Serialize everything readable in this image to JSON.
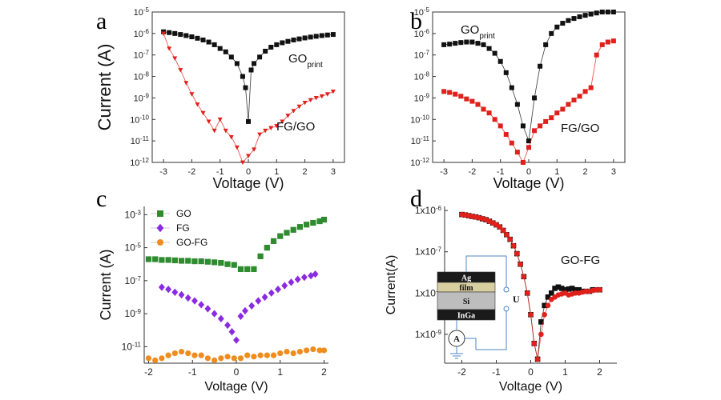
{
  "chart_data": [
    {
      "panel": "a",
      "type": "line",
      "xlabel": "Voltage (V)",
      "ylabel": "Current (A)",
      "xlim": [
        -3.4,
        3.4
      ],
      "ylim_log": [
        -12,
        -5
      ],
      "x_ticks": [
        "-3",
        "-2",
        "-1",
        "0",
        "1",
        "2",
        "3"
      ],
      "y_ticks": [
        "10-12",
        "10-11",
        "10-10",
        "10-9",
        "10-8",
        "10-7",
        "10-6",
        "10-5"
      ],
      "annotations": [
        {
          "text": "GO",
          "sub": "print"
        },
        {
          "text": "FG/GO"
        }
      ],
      "series": [
        {
          "color": "#111111",
          "marker": "square",
          "x": [
            -3,
            -2.8,
            -2.6,
            -2.4,
            -2.2,
            -2,
            -1.8,
            -1.6,
            -1.4,
            -1.2,
            -1,
            -0.8,
            -0.6,
            -0.4,
            -0.2,
            -0.1,
            0,
            0.1,
            0.2,
            0.4,
            0.6,
            0.8,
            1,
            1.2,
            1.4,
            1.6,
            1.8,
            2,
            2.2,
            2.4,
            2.6,
            2.8,
            3
          ],
          "y": [
            1.2e-06,
            1.1e-06,
            1e-06,
            9e-07,
            8e-07,
            7e-07,
            6e-07,
            5e-07,
            4e-07,
            3e-07,
            2e-07,
            1.4e-07,
            8e-08,
            4e-08,
            1e-08,
            3e-09,
            8e-11,
            2e-08,
            4e-08,
            8e-08,
            1.5e-07,
            2.3e-07,
            3e-07,
            3.7e-07,
            4.3e-07,
            5e-07,
            5.6e-07,
            6.2e-07,
            6.8e-07,
            7.4e-07,
            8e-07,
            8.5e-07,
            9e-07
          ]
        },
        {
          "color": "#e0201b",
          "marker": "triangle-down",
          "x": [
            -3,
            -2.8,
            -2.6,
            -2.4,
            -2.2,
            -2,
            -1.8,
            -1.6,
            -1.4,
            -1.2,
            -1,
            -0.8,
            -0.6,
            -0.4,
            -0.2,
            0,
            0.2,
            0.4,
            0.6,
            0.8,
            1,
            1.2,
            1.4,
            1.6,
            1.8,
            2,
            2.2,
            2.4,
            2.6,
            2.8,
            3
          ],
          "y": [
            1e-06,
            2e-07,
            7e-08,
            2e-08,
            5e-09,
            1.5e-09,
            5e-10,
            2e-10,
            8e-11,
            3e-11,
            1e-10,
            3e-11,
            1.5e-11,
            5e-12,
            1e-12,
            2e-12,
            4e-12,
            2e-11,
            3e-11,
            4e-11,
            5e-11,
            8e-11,
            1.5e-10,
            2.5e-10,
            4e-10,
            6e-10,
            8e-10,
            1e-09,
            1.2e-09,
            1.5e-09,
            2e-09
          ]
        }
      ]
    },
    {
      "panel": "b",
      "type": "line",
      "xlabel": "Voltage (V)",
      "ylabel": "",
      "xlim": [
        -3.4,
        3.4
      ],
      "ylim_log": [
        -12,
        -5
      ],
      "x_ticks": [
        "-3",
        "-2",
        "-1",
        "0",
        "1",
        "2",
        "3"
      ],
      "y_ticks": [
        "10-12",
        "10-11",
        "10-10",
        "10-9",
        "10-8",
        "10-7",
        "10-6",
        "10-5"
      ],
      "annotations": [
        {
          "text": "GO",
          "sub": "print"
        },
        {
          "text": "FG/GO"
        }
      ],
      "series": [
        {
          "color": "#111111",
          "marker": "square",
          "x": [
            -3,
            -2.8,
            -2.6,
            -2.4,
            -2.2,
            -2,
            -1.8,
            -1.6,
            -1.4,
            -1.2,
            -1,
            -0.8,
            -0.6,
            -0.4,
            -0.2,
            0,
            0.2,
            0.4,
            0.6,
            0.8,
            1,
            1.2,
            1.4,
            1.6,
            1.8,
            2,
            2.2,
            2.4,
            2.6,
            2.8,
            3
          ],
          "y": [
            3e-07,
            3.2e-07,
            3.5e-07,
            3.8e-07,
            4e-07,
            4e-07,
            3.5e-07,
            3e-07,
            2e-07,
            1.2e-07,
            5e-08,
            1.5e-08,
            3e-09,
            5e-10,
            5e-11,
            1e-11,
            1e-09,
            3e-08,
            3e-07,
            1e-06,
            2e-06,
            3e-06,
            4e-06,
            5e-06,
            6e-06,
            7e-06,
            8e-06,
            9e-06,
            1e-05,
            1e-05,
            1e-05
          ]
        },
        {
          "color": "#e0201b",
          "marker": "square",
          "x": [
            -3,
            -2.8,
            -2.6,
            -2.4,
            -2.2,
            -2,
            -1.8,
            -1.6,
            -1.4,
            -1.2,
            -1,
            -0.8,
            -0.6,
            -0.4,
            -0.2,
            0,
            0.2,
            0.4,
            0.6,
            0.8,
            1,
            1.2,
            1.4,
            1.6,
            1.8,
            2,
            2.2,
            2.4,
            2.6,
            2.8,
            3
          ],
          "y": [
            2e-09,
            1.8e-09,
            1.5e-09,
            1.2e-09,
            9e-10,
            7e-10,
            5e-10,
            3e-10,
            2e-10,
            1e-10,
            5e-11,
            2e-11,
            8e-12,
            3e-12,
            1e-12,
            5e-12,
            3e-11,
            5e-11,
            8e-11,
            1.2e-10,
            2e-10,
            3e-10,
            5e-10,
            8e-10,
            1.2e-09,
            2e-09,
            3e-09,
            1e-07,
            3e-07,
            4e-07,
            4.5e-07
          ]
        }
      ]
    },
    {
      "panel": "c",
      "type": "scatter",
      "xlabel": "Voltage (V)",
      "ylabel": "Current (A)",
      "xlim": [
        -2.1,
        2.1
      ],
      "ylim_log": [
        -12,
        -2.5
      ],
      "x_ticks": [
        "-2",
        "-1",
        "0",
        "1",
        "2"
      ],
      "y_ticks": [
        "10-11",
        "10-9",
        "10-7",
        "10-5",
        "10-3"
      ],
      "legend_position": "top-left",
      "series": [
        {
          "name": "GO",
          "color": "#2e8b2e",
          "marker": "square",
          "x": [
            -2,
            -1.85,
            -1.7,
            -1.55,
            -1.4,
            -1.25,
            -1.1,
            -0.95,
            -0.8,
            -0.65,
            -0.5,
            -0.35,
            -0.2,
            -0.05,
            0.1,
            0.25,
            0.4,
            0.55,
            0.7,
            0.85,
            1,
            1.15,
            1.3,
            1.45,
            1.6,
            1.75,
            1.9,
            2
          ],
          "y": [
            2e-06,
            2e-06,
            1.8e-06,
            1.8e-06,
            1.7e-06,
            1.6e-06,
            1.6e-06,
            1.5e-06,
            1.5e-06,
            1.4e-06,
            1.3e-06,
            1.2e-06,
            1e-06,
            9e-07,
            5e-07,
            5e-07,
            5e-07,
            3e-06,
            1e-05,
            2.5e-05,
            5e-05,
            8e-05,
            0.00012,
            0.00018,
            0.00025,
            0.00032,
            0.0004,
            0.0005
          ]
        },
        {
          "name": "FG",
          "color": "#8a2be2",
          "marker": "diamond",
          "x": [
            -1.7,
            -1.55,
            -1.4,
            -1.25,
            -1.1,
            -0.95,
            -0.8,
            -0.65,
            -0.5,
            -0.35,
            -0.2,
            -0.1,
            0,
            0.1,
            0.2,
            0.35,
            0.5,
            0.65,
            0.8,
            0.95,
            1.1,
            1.25,
            1.4,
            1.55,
            1.7,
            1.8
          ],
          "y": [
            4e-08,
            3e-08,
            2e-08,
            1.4e-08,
            9e-09,
            6e-09,
            3.5e-09,
            2e-09,
            1e-09,
            5e-10,
            2e-10,
            8e-11,
            2.5e-11,
            7e-10,
            1.5e-09,
            3e-09,
            6e-09,
            1e-08,
            1.8e-08,
            3e-08,
            5e-08,
            8e-08,
            1.2e-07,
            1.6e-07,
            2e-07,
            2.5e-07
          ]
        },
        {
          "name": "GO-FG",
          "color": "#f08c1e",
          "marker": "circle",
          "x": [
            -2,
            -1.85,
            -1.7,
            -1.55,
            -1.4,
            -1.25,
            -1.1,
            -0.95,
            -0.8,
            -0.65,
            -0.5,
            -0.35,
            -0.2,
            -0.05,
            0.1,
            0.25,
            0.4,
            0.55,
            0.7,
            0.85,
            1,
            1.15,
            1.3,
            1.45,
            1.6,
            1.75,
            1.9,
            2
          ],
          "y": [
            2e-12,
            1.5e-12,
            2e-12,
            3e-12,
            4e-12,
            5e-12,
            4e-12,
            3e-12,
            3e-12,
            2e-12,
            1.5e-12,
            2e-12,
            2.5e-12,
            2e-12,
            2e-12,
            3e-12,
            2.5e-12,
            3e-12,
            3e-12,
            3e-12,
            4e-12,
            5e-12,
            4e-12,
            5e-12,
            6e-12,
            7e-12,
            6e-12,
            6e-12
          ]
        }
      ]
    },
    {
      "panel": "d",
      "type": "line",
      "xlabel": "Voltage (V)",
      "ylabel": "Current(A)",
      "xlim": [
        -2.5,
        2.5
      ],
      "ylim_log": [
        -9.7,
        -5.9
      ],
      "x_ticks": [
        "-2",
        "-1",
        "0",
        "1",
        "2"
      ],
      "y_ticks": [
        "1x10-9",
        "1x10-8",
        "1x10-7",
        "1x10-6"
      ],
      "annotations": [
        {
          "text": "GO-FG"
        }
      ],
      "inset": {
        "layers": [
          "Ag",
          "film",
          "Si",
          "InGa"
        ],
        "meter": "A",
        "source": "U"
      },
      "series": [
        {
          "color": "#111111",
          "marker": "square",
          "x": [
            -2,
            -1.9,
            -1.8,
            -1.7,
            -1.6,
            -1.5,
            -1.4,
            -1.3,
            -1.2,
            -1.1,
            -1,
            -0.9,
            -0.8,
            -0.7,
            -0.6,
            -0.5,
            -0.4,
            -0.3,
            -0.2,
            -0.1,
            0,
            0.1,
            0.2,
            0.3,
            0.4,
            0.5,
            0.6,
            0.7,
            0.8,
            0.9,
            1,
            1.1,
            1.2,
            1.3,
            1.4,
            1.5,
            1.6,
            1.7,
            1.8,
            1.9,
            2
          ],
          "y": [
            8e-07,
            7.8e-07,
            7.5e-07,
            7.2e-07,
            7e-07,
            6.7e-07,
            6.3e-07,
            6e-07,
            5.5e-07,
            5e-07,
            4.5e-07,
            4e-07,
            3.3e-07,
            2.6e-07,
            2e-07,
            1.4e-07,
            9e-08,
            5e-08,
            2.5e-08,
            1e-08,
            3e-09,
            6e-10,
            2.5e-10,
            2e-09,
            5e-09,
            8e-09,
            1e-08,
            1.3e-08,
            1.4e-08,
            1.3e-08,
            1.2e-08,
            1.25e-08,
            1.3e-08,
            1.2e-08,
            1.2e-08,
            1.1e-08,
            1.1e-08,
            1.1e-08,
            1.2e-08,
            1.2e-08,
            1.2e-08
          ]
        },
        {
          "color": "#e0201b",
          "marker": "circle",
          "x": [
            -2,
            -1.9,
            -1.8,
            -1.7,
            -1.6,
            -1.5,
            -1.4,
            -1.3,
            -1.2,
            -1.1,
            -1,
            -0.9,
            -0.8,
            -0.7,
            -0.6,
            -0.5,
            -0.4,
            -0.3,
            -0.2,
            -0.1,
            0,
            0.1,
            0.2,
            0.3,
            0.4,
            0.5,
            0.6,
            0.7,
            0.8,
            0.9,
            1,
            1.1,
            1.2,
            1.3,
            1.4,
            1.5,
            1.6,
            1.7,
            1.8,
            1.9,
            2
          ],
          "y": [
            8e-07,
            7.8e-07,
            7.5e-07,
            7.2e-07,
            7e-07,
            6.7e-07,
            6.3e-07,
            6e-07,
            5.5e-07,
            5e-07,
            4.5e-07,
            4e-07,
            3.3e-07,
            2.6e-07,
            2e-07,
            1.4e-07,
            9e-08,
            5e-08,
            2.5e-08,
            1e-08,
            3e-09,
            6e-10,
            2.5e-10,
            1e-09,
            3e-09,
            5e-09,
            7e-09,
            8e-09,
            9e-09,
            9.5e-09,
            1e-08,
            9e-09,
            9.5e-09,
            1e-08,
            1e-08,
            1.05e-08,
            1.1e-08,
            1.1e-08,
            1.15e-08,
            1.2e-08,
            1.2e-08
          ]
        }
      ]
    }
  ],
  "panel_labels": [
    "a",
    "b",
    "c",
    "d"
  ]
}
